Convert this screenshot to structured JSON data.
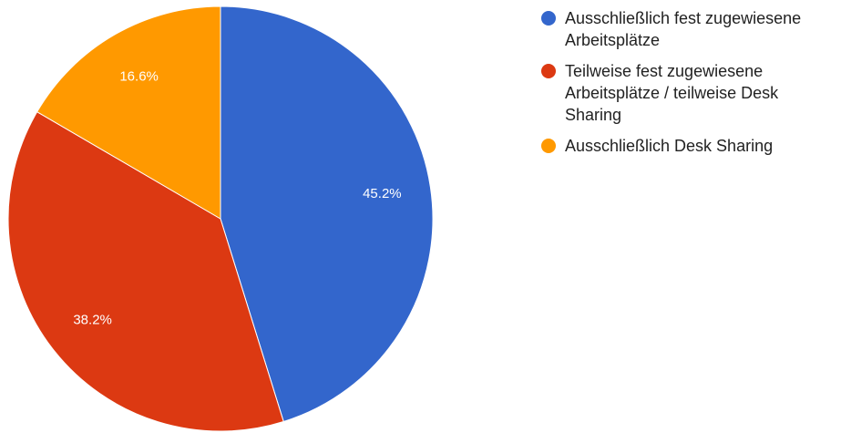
{
  "chart_data": {
    "type": "pie",
    "categories": [
      "Ausschließlich fest zugewiesene Arbeitsplätze",
      "Teilweise fest zugewiesene Arbeitsplätze / teilweise Desk Sharing",
      "Ausschließlich Desk Sharing"
    ],
    "values": [
      45.2,
      38.2,
      16.6
    ],
    "value_labels": [
      "45.2%",
      "38.2%",
      "16.6%"
    ],
    "colors": [
      "#3366cc",
      "#dc3912",
      "#ff9900"
    ],
    "legend": "right"
  }
}
